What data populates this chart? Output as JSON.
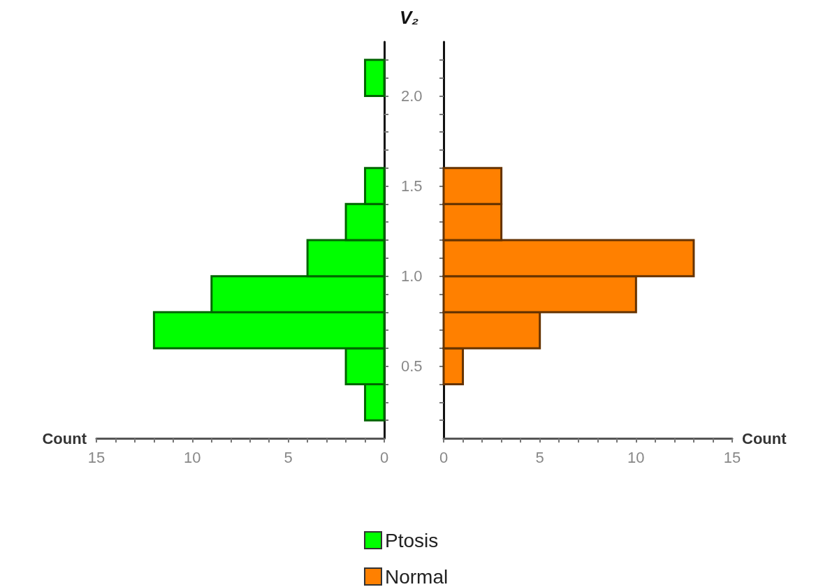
{
  "chart_data": [
    {
      "type": "histogram",
      "orientation": "horizontal",
      "xlabel": "Count",
      "ylabel": "V₂",
      "legend": "bottom",
      "bins": [
        0.2,
        0.4,
        0.6,
        0.8,
        1.0,
        1.2,
        1.4,
        1.6,
        1.8,
        2.0,
        2.2
      ],
      "series": [
        {
          "name": "Ptosis",
          "color": "#00ff00",
          "values": [
            1,
            2,
            12,
            9,
            4,
            2,
            1,
            0,
            0,
            1
          ]
        }
      ],
      "xlim": [
        15,
        0
      ],
      "xticks": [
        0,
        {
          "value": 1,
          "label": null
        },
        {
          "value": 2,
          "label": null
        },
        {
          "value": 3,
          "label": null
        },
        {
          "value": 4,
          "label": null
        },
        5,
        {
          "value": 6,
          "label": null
        },
        {
          "value": 7,
          "label": null
        },
        {
          "value": 8,
          "label": null
        },
        {
          "value": 9,
          "label": null
        },
        10,
        {
          "value": 11,
          "label": null
        },
        {
          "value": 12,
          "label": null
        },
        {
          "value": 13,
          "label": null
        },
        {
          "value": 14,
          "label": null
        },
        15
      ],
      "ylim": [
        0.1,
        2.3
      ],
      "yticks": [
        {
          "value": 0.2,
          "label": null
        },
        {
          "value": 0.3,
          "label": null
        },
        {
          "value": 0.4,
          "label": null
        },
        0.5,
        {
          "value": 0.6,
          "label": null
        },
        {
          "value": 0.7,
          "label": null
        },
        {
          "value": 0.8,
          "label": null
        },
        {
          "value": 0.9,
          "label": null
        },
        {
          "value": 1.0,
          "label": "1.0"
        },
        {
          "value": 1.1,
          "label": null
        },
        {
          "value": 1.2,
          "label": null
        },
        {
          "value": 1.3,
          "label": null
        },
        {
          "value": 1.4,
          "label": null
        },
        1.5,
        {
          "value": 1.6,
          "label": null
        },
        {
          "value": 1.7,
          "label": null
        },
        {
          "value": 1.8,
          "label": null
        },
        {
          "value": 1.9,
          "label": null
        },
        {
          "value": 2.0,
          "label": "2.0"
        },
        {
          "value": 2.1,
          "label": null
        },
        {
          "value": 2.2,
          "label": null
        }
      ],
      "grid": false
    },
    {
      "type": "histogram",
      "orientation": "horizontal",
      "xlabel": "Count",
      "legend": "bottom",
      "tick_labels": "x",
      "bins": [
        0.2,
        0.4,
        0.6,
        0.8,
        1.0,
        1.2,
        1.4,
        1.6,
        1.8,
        2.0,
        2.2
      ],
      "series": [
        {
          "name": "Normal",
          "color": "#ff8000",
          "values": [
            0,
            1,
            5,
            10,
            13,
            3,
            3,
            0,
            0,
            0
          ]
        }
      ],
      "xlim": [
        0,
        15
      ],
      "xticks": [
        0,
        {
          "value": 1,
          "label": null
        },
        {
          "value": 2,
          "label": null
        },
        {
          "value": 3,
          "label": null
        },
        {
          "value": 4,
          "label": null
        },
        5,
        {
          "value": 6,
          "label": null
        },
        {
          "value": 7,
          "label": null
        },
        {
          "value": 8,
          "label": null
        },
        {
          "value": 9,
          "label": null
        },
        10,
        {
          "value": 11,
          "label": null
        },
        {
          "value": 12,
          "label": null
        },
        {
          "value": 13,
          "label": null
        },
        {
          "value": 14,
          "label": null
        },
        15
      ],
      "ylim": [
        0.1,
        2.3
      ],
      "yticks": [
        {
          "value": 0.2,
          "label": null
        },
        {
          "value": 0.3,
          "label": null
        },
        {
          "value": 0.4,
          "label": null
        },
        {
          "value": 0.5,
          "label": null
        },
        {
          "value": 0.6,
          "label": null
        },
        {
          "value": 0.7,
          "label": null
        },
        {
          "value": 0.8,
          "label": null
        },
        {
          "value": 0.9,
          "label": null
        },
        {
          "value": 1.0,
          "label": null
        },
        {
          "value": 1.1,
          "label": null
        },
        {
          "value": 1.2,
          "label": null
        },
        {
          "value": 1.3,
          "label": null
        },
        {
          "value": 1.4,
          "label": null
        },
        {
          "value": 1.5,
          "label": null
        },
        {
          "value": 1.6,
          "label": null
        },
        {
          "value": 1.7,
          "label": null
        },
        {
          "value": 1.8,
          "label": null
        },
        {
          "value": 1.9,
          "label": null
        },
        {
          "value": 2.0,
          "label": null
        },
        {
          "value": 2.1,
          "label": null
        },
        {
          "value": 2.2,
          "label": null
        }
      ],
      "grid": false
    }
  ]
}
